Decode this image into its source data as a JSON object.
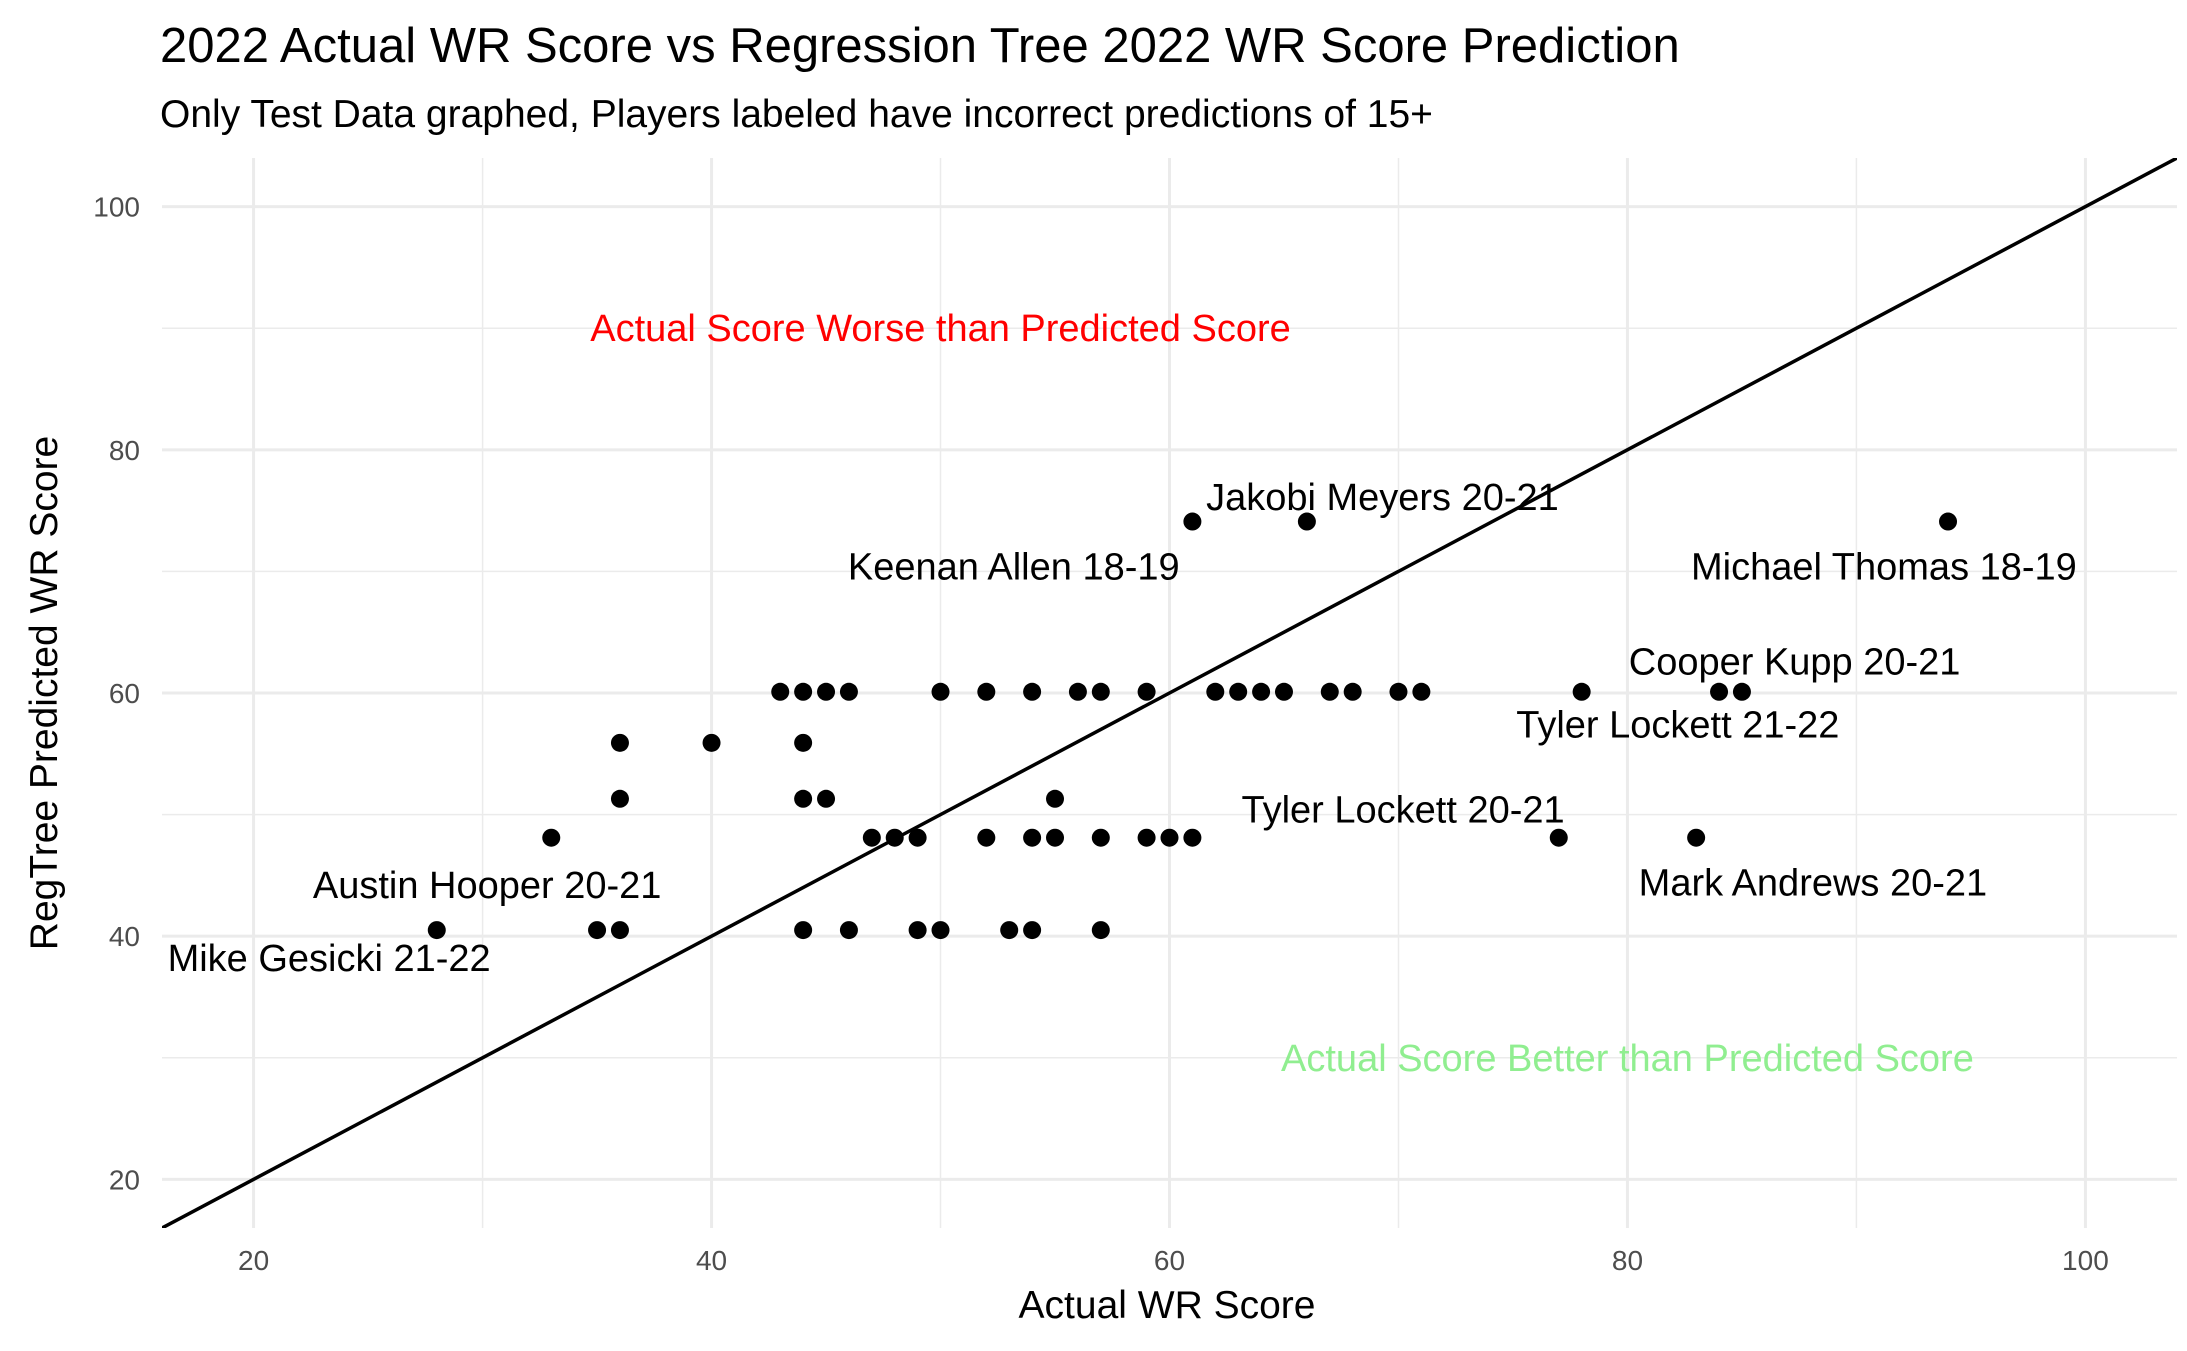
{
  "chart_data": {
    "type": "scatter",
    "title": "2022 Actual WR Score vs Regression Tree 2022 WR Score Prediction",
    "subtitle": "Only Test Data graphed, Players labeled have incorrect predictions of 15+",
    "xlabel": "Actual WR Score",
    "ylabel": "RegTree Predicted WR Score",
    "xlim": [
      16,
      104
    ],
    "ylim": [
      16,
      104
    ],
    "xticks": [
      20,
      40,
      60,
      80,
      100
    ],
    "yticks": [
      20,
      40,
      60,
      80,
      100
    ],
    "grid": true,
    "reference_line": {
      "slope": 1,
      "intercept": 0
    },
    "points": [
      {
        "x": 28,
        "y": 40.5
      },
      {
        "x": 33,
        "y": 48.1
      },
      {
        "x": 35,
        "y": 40.5
      },
      {
        "x": 36,
        "y": 40.5
      },
      {
        "x": 36,
        "y": 51.3
      },
      {
        "x": 36,
        "y": 55.9
      },
      {
        "x": 40,
        "y": 55.9
      },
      {
        "x": 43,
        "y": 60.1
      },
      {
        "x": 44,
        "y": 60.1
      },
      {
        "x": 45,
        "y": 60.1
      },
      {
        "x": 46,
        "y": 60.1
      },
      {
        "x": 44,
        "y": 55.9
      },
      {
        "x": 44,
        "y": 51.3
      },
      {
        "x": 45,
        "y": 51.3
      },
      {
        "x": 44,
        "y": 40.5
      },
      {
        "x": 46,
        "y": 40.5
      },
      {
        "x": 47,
        "y": 48.1
      },
      {
        "x": 48,
        "y": 48.1
      },
      {
        "x": 49,
        "y": 48.1
      },
      {
        "x": 49,
        "y": 40.5
      },
      {
        "x": 50,
        "y": 40.5
      },
      {
        "x": 50,
        "y": 60.1
      },
      {
        "x": 52,
        "y": 60.1
      },
      {
        "x": 52,
        "y": 48.1
      },
      {
        "x": 53,
        "y": 40.5
      },
      {
        "x": 54,
        "y": 40.5
      },
      {
        "x": 54,
        "y": 48.1
      },
      {
        "x": 54,
        "y": 60.1
      },
      {
        "x": 55,
        "y": 48.1
      },
      {
        "x": 55,
        "y": 51.3
      },
      {
        "x": 56,
        "y": 60.1
      },
      {
        "x": 57,
        "y": 60.1
      },
      {
        "x": 57,
        "y": 48.1
      },
      {
        "x": 57,
        "y": 40.5
      },
      {
        "x": 59,
        "y": 60.1
      },
      {
        "x": 59,
        "y": 48.1
      },
      {
        "x": 60,
        "y": 48.1
      },
      {
        "x": 61,
        "y": 48.1
      },
      {
        "x": 61,
        "y": 74.1
      },
      {
        "x": 62,
        "y": 60.1
      },
      {
        "x": 63,
        "y": 60.1
      },
      {
        "x": 64,
        "y": 60.1
      },
      {
        "x": 65,
        "y": 60.1
      },
      {
        "x": 66,
        "y": 74.1
      },
      {
        "x": 67,
        "y": 60.1
      },
      {
        "x": 68,
        "y": 60.1
      },
      {
        "x": 70,
        "y": 60.1
      },
      {
        "x": 71,
        "y": 60.1
      },
      {
        "x": 77,
        "y": 48.1
      },
      {
        "x": 78,
        "y": 60.1
      },
      {
        "x": 83,
        "y": 48.1
      },
      {
        "x": 84,
        "y": 60.1
      },
      {
        "x": 85,
        "y": 60.1
      },
      {
        "x": 94,
        "y": 74.1
      }
    ],
    "labels": [
      {
        "text": "Mike Gesicki 21-22",
        "x": 23.3,
        "y": 38.2
      },
      {
        "text": "Austin Hooper 20-21",
        "x": 30.2,
        "y": 44.2
      },
      {
        "text": "Keenan Allen 18-19",
        "x": 53.2,
        "y": 70.4
      },
      {
        "text": "Jakobi Meyers 20-21",
        "x": 69.3,
        "y": 76.1
      },
      {
        "text": "Michael Thomas 18-19",
        "x": 91.2,
        "y": 70.4
      },
      {
        "text": "Cooper Kupp 20-21",
        "x": 87.3,
        "y": 62.6
      },
      {
        "text": "Tyler Lockett 21-22",
        "x": 82.2,
        "y": 57.4
      },
      {
        "text": "Tyler Lockett 20-21",
        "x": 70.2,
        "y": 50.4
      },
      {
        "text": "Mark Andrews 20-21",
        "x": 88.1,
        "y": 44.4
      }
    ],
    "annotations": [
      {
        "text": "Actual Score Worse than Predicted Score",
        "x": 50,
        "y": 90,
        "color": "#ff0000"
      },
      {
        "text": "Actual Score Better than Predicted Score",
        "x": 80,
        "y": 30,
        "color": "#90ee90"
      }
    ]
  }
}
